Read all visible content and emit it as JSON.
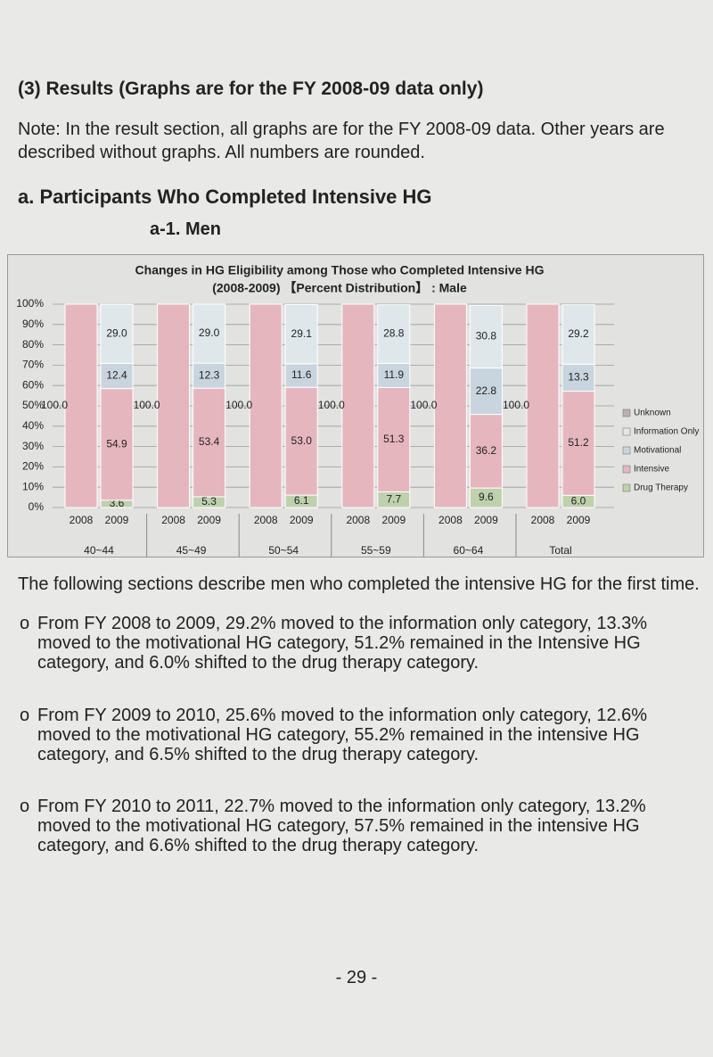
{
  "header": {
    "title": "(3) Results (Graphs are for the FY 2008-09 data only)"
  },
  "note": {
    "text": "Note: In the result section, all graphs are for the FY 2008-09 data. Other years are described without graphs. All numbers are rounded."
  },
  "section": {
    "title": "a. Participants Who Completed Intensive HG",
    "subtitle": "a-1. Men"
  },
  "chart_data": {
    "type": "stacked_bar",
    "title": "Changes in HG Eligibility among Those who Completed Intensive HG",
    "subtitle": "(2008-2009) 【Percent Distribution】 : Male",
    "categories": [
      "2008",
      "2009",
      "2008",
      "2009",
      "2008",
      "2009",
      "2008",
      "2009",
      "2008",
      "2009",
      "2008",
      "2009"
    ],
    "groups": [
      "40~44",
      "45~49",
      "50~54",
      "55~59",
      "60~64",
      "Total"
    ],
    "ylim": [
      0,
      100
    ],
    "yticks": [
      {
        "value": 0,
        "label": "0%"
      },
      {
        "value": 10,
        "label": "10%"
      },
      {
        "value": 20,
        "label": "20%"
      },
      {
        "value": 30,
        "label": "30%"
      },
      {
        "value": 40,
        "label": "40%"
      },
      {
        "value": 50,
        "label": "50%"
      },
      {
        "value": 60,
        "label": "60%"
      },
      {
        "value": 70,
        "label": "70%"
      },
      {
        "value": 80,
        "label": "80%"
      },
      {
        "value": 90,
        "label": "90%"
      },
      {
        "value": 100,
        "label": "100%"
      }
    ],
    "grid": true,
    "legend": "right",
    "series": [
      {
        "name": "Drug Therapy",
        "color": "#bfd0ad",
        "values": [
          null,
          3.6,
          null,
          5.3,
          null,
          6.1,
          null,
          7.7,
          null,
          9.6,
          null,
          6.0
        ],
        "value_labels": [
          null,
          "3.6",
          null,
          "5.3",
          null,
          "6.1",
          null,
          "7.7",
          null,
          "9.6",
          null,
          "6.0"
        ]
      },
      {
        "name": "Intensive",
        "color": "#e6b6bf",
        "values": [
          100,
          54.9,
          100,
          53.4,
          100,
          53.0,
          100,
          51.3,
          100,
          36.2,
          100,
          51.2
        ],
        "value_labels": [
          "100.0",
          "54.9",
          "100.0",
          "53.4",
          "100.0",
          "53.0",
          "100.0",
          "51.3",
          "100.0",
          "36.2",
          "100.0",
          "51.2"
        ]
      },
      {
        "name": "Motivational",
        "color": "#c9d5de",
        "values": [
          null,
          12.4,
          null,
          12.3,
          null,
          11.6,
          null,
          11.9,
          null,
          22.8,
          null,
          13.3
        ],
        "value_labels": [
          null,
          "12.4",
          null,
          "12.3",
          null,
          "11.6",
          null,
          "11.9",
          null,
          "22.8",
          null,
          "13.3"
        ]
      },
      {
        "name": "Information Only",
        "color": "#dfe7eb",
        "values": [
          null,
          29.0,
          null,
          29.0,
          null,
          29.1,
          null,
          28.8,
          null,
          30.8,
          null,
          29.2
        ],
        "value_labels": [
          null,
          "29.0",
          null,
          "29.0",
          null,
          "29.1",
          null,
          "28.8",
          null,
          "30.8",
          null,
          "29.2"
        ]
      },
      {
        "name": "Unknown",
        "color": "#b9b1b3",
        "values": [
          null,
          null,
          null,
          null,
          null,
          null,
          null,
          null,
          null,
          null,
          null,
          null
        ]
      }
    ]
  },
  "body": {
    "intro": "The following sections describe men who completed the intensive HG for the first time.",
    "bullets": [
      "From FY 2008 to 2009, 29.2% moved to the information only category, 13.3% moved to the motivational HG category, 51.2% remained in the Intensive HG category, and 6.0% shifted to the drug therapy category.",
      "From FY 2009 to 2010, 25.6% moved to the information only category, 12.6% moved to the motivational HG category, 55.2% remained in the intensive HG category, and 6.5% shifted to the drug therapy category.",
      "From FY 2010 to 2011, 22.7% moved to the information only category, 13.2% moved to the motivational HG category, 57.5% remained in the intensive HG category, and 6.6% shifted to the drug therapy category."
    ]
  },
  "footer": {
    "page": "- 29 -"
  }
}
